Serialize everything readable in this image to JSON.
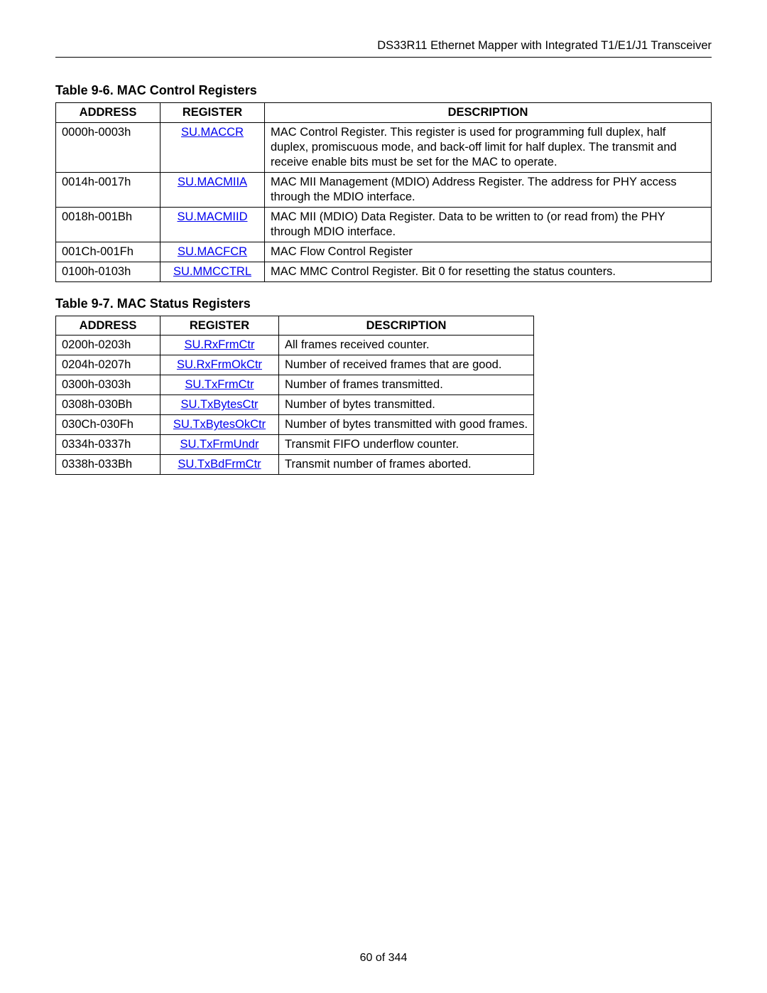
{
  "header": "DS33R11 Ethernet Mapper with Integrated T1/E1/J1 Transceiver",
  "footer": "60 of 344",
  "table1": {
    "title": "Table 9-6. MAC Control Registers",
    "columns": [
      "ADDRESS",
      "REGISTER",
      "DESCRIPTION"
    ],
    "rows": [
      {
        "address": "0000h-0003h",
        "register": "SU.MACCR",
        "description": "MAC Control Register. This register is used for programming full duplex, half duplex, promiscuous mode, and back-off limit for half duplex. The transmit and receive enable bits must be set for the MAC to operate."
      },
      {
        "address": "0014h-0017h",
        "register": "SU.MACMIIA",
        "description": "MAC MII Management (MDIO) Address Register. The address for PHY access through the MDIO interface."
      },
      {
        "address": "0018h-001Bh",
        "register": "SU.MACMIID",
        "description": "MAC MII (MDIO) Data Register. Data to be written to (or read from) the PHY through MDIO interface."
      },
      {
        "address": "001Ch-001Fh",
        "register": "SU.MACFCR",
        "description": "MAC Flow Control Register"
      },
      {
        "address": "0100h-0103h",
        "register": "SU.MMCCTRL",
        "description": "MAC MMC Control Register. Bit 0 for resetting the status counters."
      }
    ]
  },
  "table2": {
    "title": "Table 9-7. MAC Status Registers",
    "columns": [
      "ADDRESS",
      "REGISTER",
      "DESCRIPTION"
    ],
    "rows": [
      {
        "address": "0200h-0203h",
        "register": "SU.RxFrmCtr",
        "description": "All frames received counter."
      },
      {
        "address": "0204h-0207h",
        "register": "SU.RxFrmOkCtr",
        "description": "Number of received frames that are good."
      },
      {
        "address": "0300h-0303h",
        "register": "SU.TxFrmCtr",
        "description": "Number of frames transmitted."
      },
      {
        "address": "0308h-030Bh",
        "register": "SU.TxBytesCtr",
        "description": "Number of bytes transmitted."
      },
      {
        "address": "030Ch-030Fh",
        "register": "SU.TxBytesOkCtr",
        "description": "Number of bytes transmitted with good frames."
      },
      {
        "address": "0334h-0337h",
        "register": "SU.TxFrmUndr",
        "description": "Transmit FIFO underflow counter."
      },
      {
        "address": "0338h-033Bh",
        "register": "SU.TxBdFrmCtr",
        "description": "Transmit number of frames aborted."
      }
    ]
  }
}
